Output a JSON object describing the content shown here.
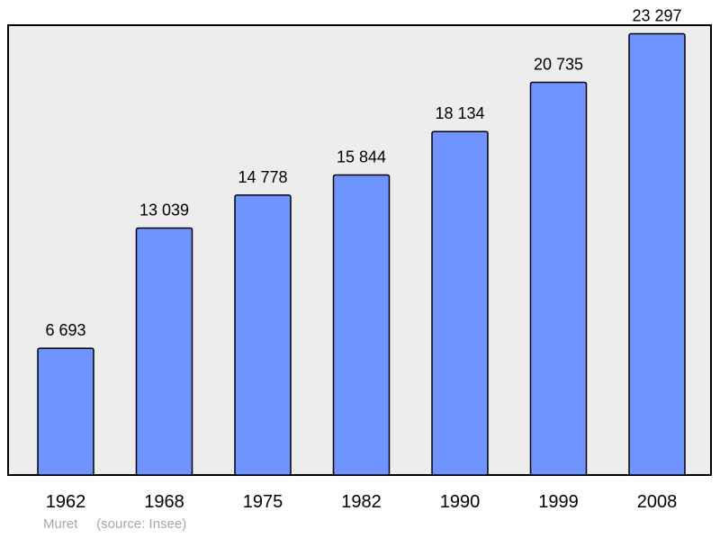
{
  "chart_data": {
    "type": "bar",
    "categories": [
      "1962",
      "1968",
      "1975",
      "1982",
      "1990",
      "1999",
      "2008"
    ],
    "values": [
      6693,
      13039,
      14778,
      15844,
      18134,
      20735,
      23297
    ],
    "value_labels": [
      "6 693",
      "13 039",
      "14 778",
      "15 844",
      "18 134",
      "20 735",
      "23 297"
    ],
    "title": "",
    "xlabel": "",
    "ylabel": "",
    "ylim": [
      0,
      25000
    ],
    "grid": false,
    "legend": "none",
    "colors": {
      "bar": "#7094ff",
      "plot_background": "#ededed",
      "frame": "#000000",
      "footer_text": "#a8a8a8"
    }
  },
  "footer": {
    "place": "Muret",
    "source": "(source: Insee)"
  }
}
